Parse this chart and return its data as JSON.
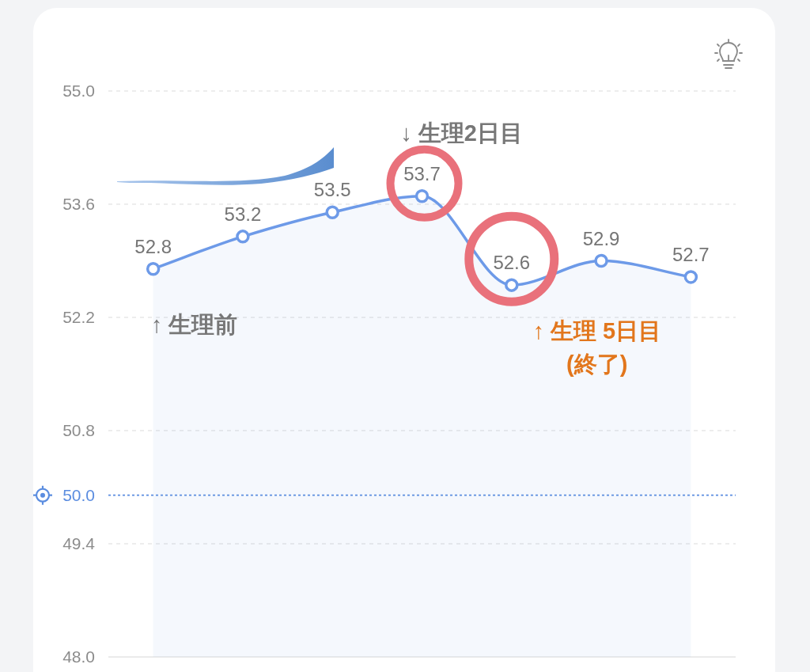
{
  "chart_data": {
    "type": "area",
    "categories": [
      null,
      null,
      null,
      null,
      null,
      null,
      null
    ],
    "series": [
      {
        "values": [
          52.8,
          53.2,
          53.5,
          53.7,
          52.6,
          52.9,
          52.7
        ],
        "color": "#6d9ae8"
      }
    ],
    "ylim": [
      48,
      55
    ],
    "yticks": [
      {
        "value": 55,
        "label": "55.0"
      },
      {
        "value": 53.6,
        "label": "53.6"
      },
      {
        "value": 52.2,
        "label": "52.2"
      },
      {
        "value": 50.8,
        "label": "50.8"
      },
      {
        "value": 49.4,
        "label": "49.4"
      },
      {
        "value": 48,
        "label": "48.0"
      }
    ],
    "grid": "y",
    "tick_labels": "y",
    "marker": "circle",
    "line_style": "solid",
    "data_labels": true,
    "ref_lines": [
      {
        "axis": "y",
        "value": 50,
        "label": "50.0",
        "color": "#5b8de0",
        "line_style": "dotted"
      }
    ],
    "annotations": [
      "↓ 生理2日目",
      "↑ 生理前",
      "↑ 生理 5日目\n(終了)"
    ]
  }
}
